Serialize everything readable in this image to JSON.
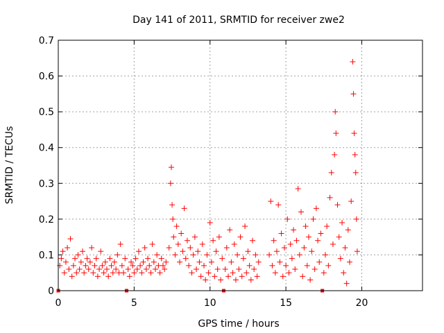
{
  "chart_data": {
    "type": "scatter",
    "title": "Day 141 of 2011, SRMTID for receiver zwe2",
    "xlabel": "GPS time / hours",
    "ylabel": "SRMTID / TECUs",
    "xlim": [
      0,
      24
    ],
    "ylim": [
      0,
      0.7
    ],
    "xticks": [
      0,
      5,
      10,
      15,
      20
    ],
    "yticks": [
      0,
      0.1,
      0.2,
      0.3,
      0.4,
      0.5,
      0.6,
      0.7
    ],
    "xtick_labels": [
      "0",
      "5",
      "10",
      "15",
      "20"
    ],
    "ytick_labels": [
      "0",
      "0.1",
      "0.2",
      "0.3",
      "0.4",
      "0.5",
      "0.6",
      "0.7"
    ],
    "grid": true,
    "marker": "+",
    "color": "#ff0000",
    "zero_markers_x": [
      0.0,
      4.5,
      10.9,
      17.4
    ],
    "series": [
      {
        "name": "SRMTID",
        "points": [
          [
            0.1,
            0.07
          ],
          [
            0.2,
            0.09
          ],
          [
            0.3,
            0.11
          ],
          [
            0.4,
            0.05
          ],
          [
            0.5,
            0.08
          ],
          [
            0.6,
            0.12
          ],
          [
            0.7,
            0.06
          ],
          [
            0.8,
            0.145
          ],
          [
            0.9,
            0.04
          ],
          [
            1.0,
            0.07
          ],
          [
            1.1,
            0.09
          ],
          [
            1.2,
            0.05
          ],
          [
            1.3,
            0.1
          ],
          [
            1.4,
            0.06
          ],
          [
            1.5,
            0.08
          ],
          [
            1.6,
            0.11
          ],
          [
            1.7,
            0.05
          ],
          [
            1.8,
            0.07
          ],
          [
            1.9,
            0.09
          ],
          [
            2.0,
            0.06
          ],
          [
            2.1,
            0.08
          ],
          [
            2.2,
            0.12
          ],
          [
            2.3,
            0.05
          ],
          [
            2.4,
            0.07
          ],
          [
            2.5,
            0.09
          ],
          [
            2.6,
            0.04
          ],
          [
            2.7,
            0.06
          ],
          [
            2.8,
            0.11
          ],
          [
            2.9,
            0.07
          ],
          [
            3.0,
            0.05
          ],
          [
            3.1,
            0.08
          ],
          [
            3.2,
            0.06
          ],
          [
            3.3,
            0.04
          ],
          [
            3.4,
            0.09
          ],
          [
            3.5,
            0.07
          ],
          [
            3.6,
            0.05
          ],
          [
            3.7,
            0.08
          ],
          [
            3.8,
            0.06
          ],
          [
            3.9,
            0.1
          ],
          [
            4.0,
            0.05
          ],
          [
            4.1,
            0.13
          ],
          [
            4.2,
            0.07
          ],
          [
            4.3,
            0.05
          ],
          [
            4.4,
            0.09
          ],
          [
            4.6,
            0.06
          ],
          [
            4.7,
            0.04
          ],
          [
            4.8,
            0.08
          ],
          [
            4.9,
            0.07
          ],
          [
            5.0,
            0.05
          ],
          [
            5.1,
            0.09
          ],
          [
            5.2,
            0.06
          ],
          [
            5.3,
            0.11
          ],
          [
            5.4,
            0.07
          ],
          [
            5.5,
            0.05
          ],
          [
            5.6,
            0.08
          ],
          [
            5.7,
            0.12
          ],
          [
            5.8,
            0.06
          ],
          [
            5.9,
            0.09
          ],
          [
            6.0,
            0.07
          ],
          [
            6.1,
            0.05
          ],
          [
            6.2,
            0.13
          ],
          [
            6.3,
            0.08
          ],
          [
            6.4,
            0.06
          ],
          [
            6.5,
            0.1
          ],
          [
            6.6,
            0.07
          ],
          [
            6.7,
            0.05
          ],
          [
            6.8,
            0.09
          ],
          [
            6.9,
            0.07
          ],
          [
            7.0,
            0.06
          ],
          [
            7.1,
            0.08
          ],
          [
            7.3,
            0.12
          ],
          [
            7.4,
            0.3
          ],
          [
            7.45,
            0.345
          ],
          [
            7.5,
            0.24
          ],
          [
            7.55,
            0.2
          ],
          [
            7.6,
            0.15
          ],
          [
            7.7,
            0.1
          ],
          [
            7.8,
            0.18
          ],
          [
            7.9,
            0.13
          ],
          [
            8.0,
            0.08
          ],
          [
            8.1,
            0.16
          ],
          [
            8.2,
            0.11
          ],
          [
            8.3,
            0.23
          ],
          [
            8.4,
            0.09
          ],
          [
            8.5,
            0.14
          ],
          [
            8.6,
            0.07
          ],
          [
            8.7,
            0.12
          ],
          [
            8.8,
            0.05
          ],
          [
            8.9,
            0.1
          ],
          [
            9.0,
            0.15
          ],
          [
            9.1,
            0.06
          ],
          [
            9.2,
            0.11
          ],
          [
            9.3,
            0.08
          ],
          [
            9.4,
            0.04
          ],
          [
            9.5,
            0.13
          ],
          [
            9.6,
            0.07
          ],
          [
            9.7,
            0.03
          ],
          [
            9.8,
            0.1
          ],
          [
            9.9,
            0.05
          ],
          [
            10.0,
            0.19
          ],
          [
            10.1,
            0.08
          ],
          [
            10.2,
            0.14
          ],
          [
            10.3,
            0.04
          ],
          [
            10.4,
            0.11
          ],
          [
            10.5,
            0.06
          ],
          [
            10.6,
            0.15
          ],
          [
            10.7,
            0.03
          ],
          [
            10.8,
            0.09
          ],
          [
            11.0,
            0.06
          ],
          [
            11.1,
            0.12
          ],
          [
            11.2,
            0.04
          ],
          [
            11.3,
            0.17
          ],
          [
            11.4,
            0.08
          ],
          [
            11.5,
            0.05
          ],
          [
            11.6,
            0.13
          ],
          [
            11.7,
            0.03
          ],
          [
            11.8,
            0.1
          ],
          [
            11.9,
            0.06
          ],
          [
            12.0,
            0.15
          ],
          [
            12.1,
            0.04
          ],
          [
            12.2,
            0.09
          ],
          [
            12.3,
            0.18
          ],
          [
            12.4,
            0.05
          ],
          [
            12.5,
            0.11
          ],
          [
            12.6,
            0.07
          ],
          [
            12.7,
            0.03
          ],
          [
            12.8,
            0.14
          ],
          [
            12.9,
            0.06
          ],
          [
            13.0,
            0.1
          ],
          [
            13.1,
            0.04
          ],
          [
            13.2,
            0.08
          ],
          [
            13.9,
            0.1
          ],
          [
            14.0,
            0.25
          ],
          [
            14.1,
            0.07
          ],
          [
            14.2,
            0.14
          ],
          [
            14.3,
            0.05
          ],
          [
            14.4,
            0.11
          ],
          [
            14.5,
            0.24
          ],
          [
            14.6,
            0.08
          ],
          [
            14.7,
            0.16
          ],
          [
            14.8,
            0.04
          ],
          [
            14.9,
            0.12
          ],
          [
            15.0,
            0.07
          ],
          [
            15.1,
            0.2
          ],
          [
            15.2,
            0.05
          ],
          [
            15.3,
            0.13
          ],
          [
            15.4,
            0.09
          ],
          [
            15.5,
            0.17
          ],
          [
            15.6,
            0.06
          ],
          [
            15.7,
            0.14
          ],
          [
            15.8,
            0.285
          ],
          [
            15.9,
            0.1
          ],
          [
            16.0,
            0.22
          ],
          [
            16.1,
            0.04
          ],
          [
            16.2,
            0.12
          ],
          [
            16.3,
            0.18
          ],
          [
            16.4,
            0.07
          ],
          [
            16.5,
            0.15
          ],
          [
            16.6,
            0.03
          ],
          [
            16.7,
            0.11
          ],
          [
            16.8,
            0.2
          ],
          [
            16.9,
            0.06
          ],
          [
            17.0,
            0.23
          ],
          [
            17.1,
            0.14
          ],
          [
            17.2,
            0.08
          ],
          [
            17.3,
            0.16
          ],
          [
            17.5,
            0.05
          ],
          [
            17.6,
            0.1
          ],
          [
            17.7,
            0.18
          ],
          [
            17.8,
            0.07
          ],
          [
            17.9,
            0.26
          ],
          [
            18.0,
            0.33
          ],
          [
            18.1,
            0.13
          ],
          [
            18.2,
            0.38
          ],
          [
            18.25,
            0.5
          ],
          [
            18.3,
            0.44
          ],
          [
            18.4,
            0.24
          ],
          [
            18.5,
            0.15
          ],
          [
            18.6,
            0.09
          ],
          [
            18.7,
            0.19
          ],
          [
            18.8,
            0.05
          ],
          [
            18.9,
            0.12
          ],
          [
            19.0,
            0.02
          ],
          [
            19.1,
            0.17
          ],
          [
            19.2,
            0.08
          ],
          [
            19.3,
            0.25
          ],
          [
            19.4,
            0.64
          ],
          [
            19.45,
            0.55
          ],
          [
            19.5,
            0.44
          ],
          [
            19.55,
            0.38
          ],
          [
            19.6,
            0.33
          ],
          [
            19.65,
            0.2
          ],
          [
            19.7,
            0.11
          ]
        ]
      }
    ]
  }
}
